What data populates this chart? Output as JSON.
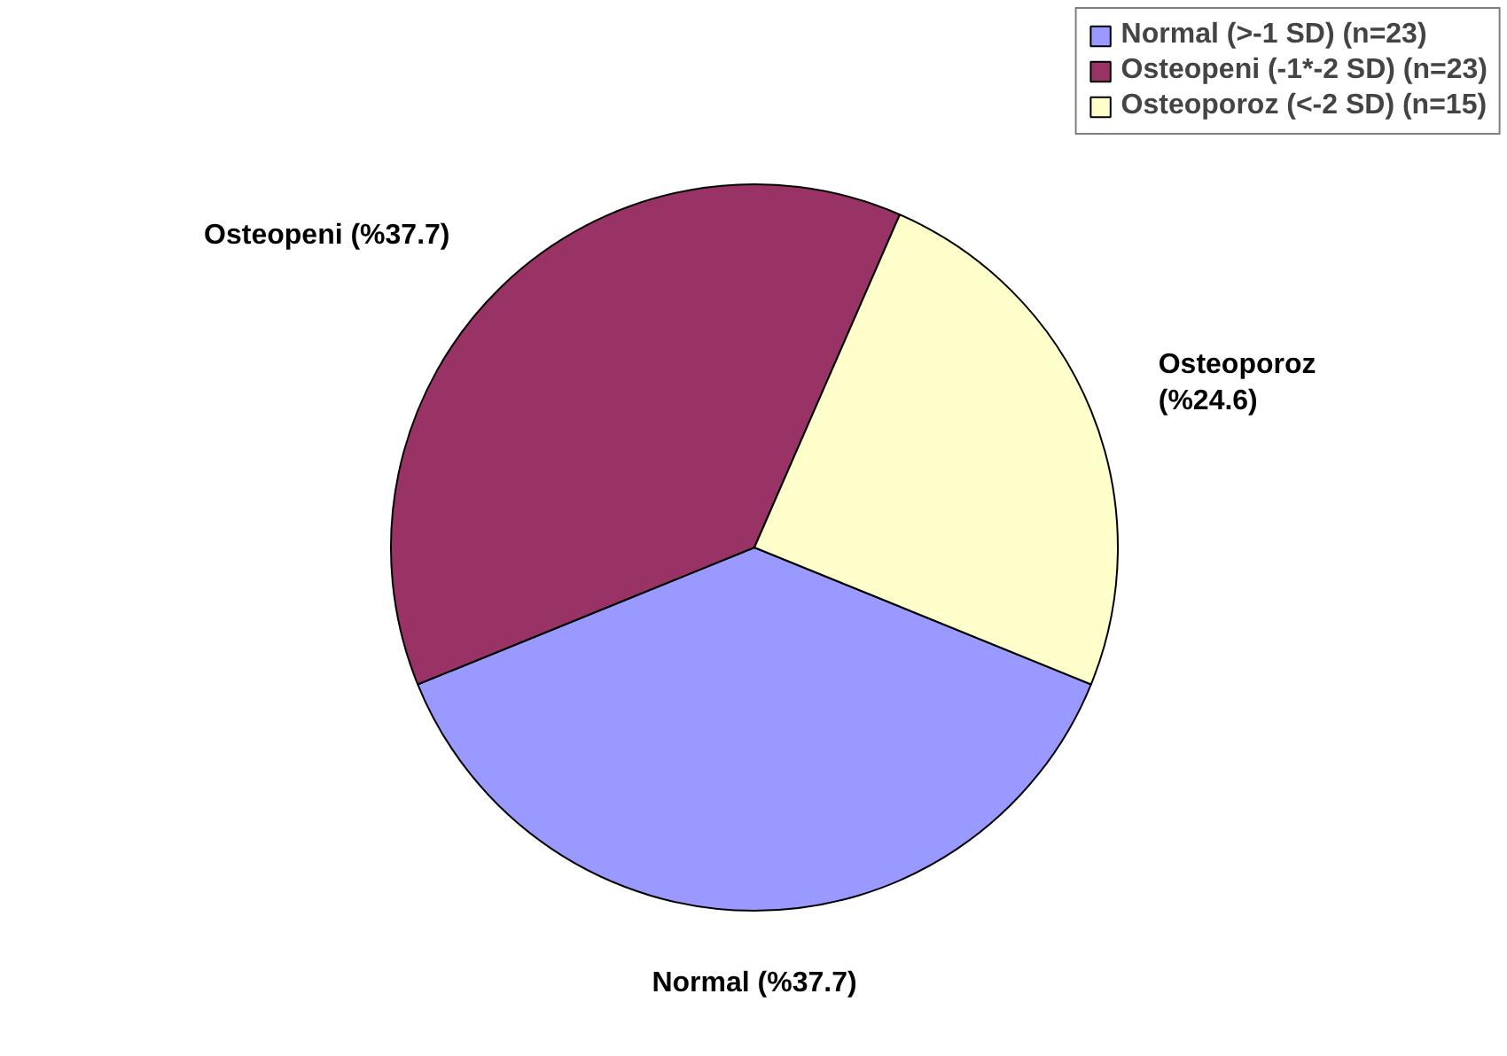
{
  "chart_data": {
    "type": "pie",
    "categories": [
      "Normal (>-1 SD) (n=23)",
      "Osteopeni (-1*-2 SD) (n=23)",
      "Osteoporoz (<-2 SD) (n=15)"
    ],
    "values": [
      37.7,
      37.7,
      24.6
    ],
    "colors": [
      "#9999ff",
      "#993366",
      "#ffffcc"
    ],
    "value_labels": [
      "Normal (%37.7)",
      "Osteopeni (%37.7)",
      "Osteoporoz\n(%24.6)"
    ],
    "legend": "top right"
  }
}
